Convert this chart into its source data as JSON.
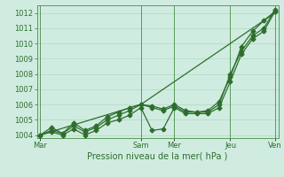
{
  "xlabel": "Pression niveau de la mer( hPa )",
  "background_color": "#d0ece0",
  "grid_color": "#b0d8c0",
  "line_color": "#2d6e2d",
  "spine_color": "#5a9a5a",
  "ylim": [
    1003.8,
    1012.5
  ],
  "yticks": [
    1004,
    1005,
    1006,
    1007,
    1008,
    1009,
    1010,
    1011,
    1012
  ],
  "day_labels": [
    "Mar",
    "Sam",
    "Mer",
    "Jeu",
    "Ven"
  ],
  "day_positions": [
    0,
    9,
    12,
    17,
    21
  ],
  "num_steps": 22,
  "xlim": [
    -0.3,
    21.3
  ],
  "lines": [
    {
      "x": [
        0,
        1,
        2,
        3,
        4,
        5,
        6,
        7,
        8,
        9,
        10,
        11,
        12,
        13,
        14,
        15,
        16,
        17,
        18,
        19,
        20,
        21
      ],
      "y": [
        1004.0,
        1004.5,
        1004.1,
        1004.8,
        1004.3,
        1004.6,
        1005.2,
        1005.5,
        1005.8,
        1006.0,
        1005.8,
        1005.6,
        1005.9,
        1005.5,
        1005.5,
        1005.5,
        1006.0,
        1008.0,
        1009.5,
        1010.5,
        1011.0,
        1012.2
      ],
      "marker": true
    },
    {
      "x": [
        0,
        1,
        2,
        3,
        4,
        5,
        6,
        7,
        8,
        9,
        10,
        11,
        12,
        13,
        14,
        15,
        16,
        17,
        18,
        19,
        20,
        21
      ],
      "y": [
        1004.0,
        1004.3,
        1004.1,
        1004.6,
        1004.2,
        1004.5,
        1005.0,
        1005.3,
        1005.6,
        1006.0,
        1005.9,
        1005.7,
        1006.0,
        1005.6,
        1005.5,
        1005.6,
        1006.2,
        1007.8,
        1009.8,
        1010.8,
        1011.5,
        1012.1
      ],
      "marker": true
    },
    {
      "x": [
        0,
        9,
        21
      ],
      "y": [
        1004.0,
        1006.0,
        1012.0
      ],
      "marker": false
    },
    {
      "x": [
        0,
        1,
        2,
        3,
        4,
        5,
        6,
        7,
        8,
        9,
        10,
        11,
        12,
        13,
        14,
        15,
        16,
        17,
        18,
        19,
        20,
        21
      ],
      "y": [
        1004.0,
        1004.2,
        1004.0,
        1004.4,
        1004.0,
        1004.3,
        1004.8,
        1005.0,
        1005.3,
        1005.8,
        1004.3,
        1004.4,
        1005.8,
        1005.4,
        1005.4,
        1005.4,
        1005.8,
        1007.5,
        1009.3,
        1010.3,
        1010.8,
        1012.1
      ],
      "marker": true
    }
  ],
  "marker_style": "D",
  "markersize": 2.5,
  "linewidth": 0.9,
  "xlabel_fontsize": 7,
  "tick_fontsize": 6
}
